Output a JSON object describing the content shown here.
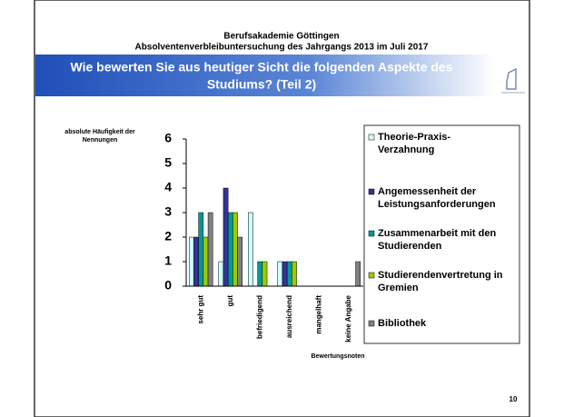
{
  "header": {
    "org": "Berufsakademie Göttingen",
    "survey": "Absolventenverbleibuntersuchung des Jahrgangs 2013 im Juli 2017",
    "question_line1": "Wie bewerten Sie aus heutiger Sicht die folgenden Aspekte des",
    "question_line2": "Studiums? (Teil 2)"
  },
  "page_number": "10",
  "chart_data": {
    "type": "bar",
    "y_label": "absolute Häufigkeit der Nennungen",
    "x_label": "Bewertungsnoten",
    "categories": [
      "sehr gut",
      "gut",
      "befriedigend",
      "ausreichend",
      "mangelhaft",
      "keine Angabe"
    ],
    "series": [
      {
        "name": "Theorie-Praxis-Verzahnung",
        "color": "#ccffff",
        "values": [
          2,
          1,
          3,
          1,
          0,
          0
        ]
      },
      {
        "name": "Angemessenheit der Leistungsanforderungen",
        "color": "#333399",
        "values": [
          2,
          4,
          0,
          1,
          0,
          0
        ]
      },
      {
        "name": "Zusammenarbeit mit den Studierenden",
        "color": "#009999",
        "values": [
          3,
          3,
          1,
          1,
          0,
          0
        ]
      },
      {
        "name": "Studierendenvertretung in Gremien",
        "color": "#99cc00",
        "values": [
          2,
          3,
          1,
          1,
          0,
          0
        ]
      },
      {
        "name": "Bibliothek",
        "color": "#808080",
        "values": [
          3,
          2,
          0,
          0,
          0,
          1
        ]
      }
    ],
    "ylim": [
      0,
      6
    ],
    "yticks": [
      0,
      1,
      2,
      3,
      4,
      5,
      6
    ],
    "grid": false,
    "legend": "right"
  }
}
